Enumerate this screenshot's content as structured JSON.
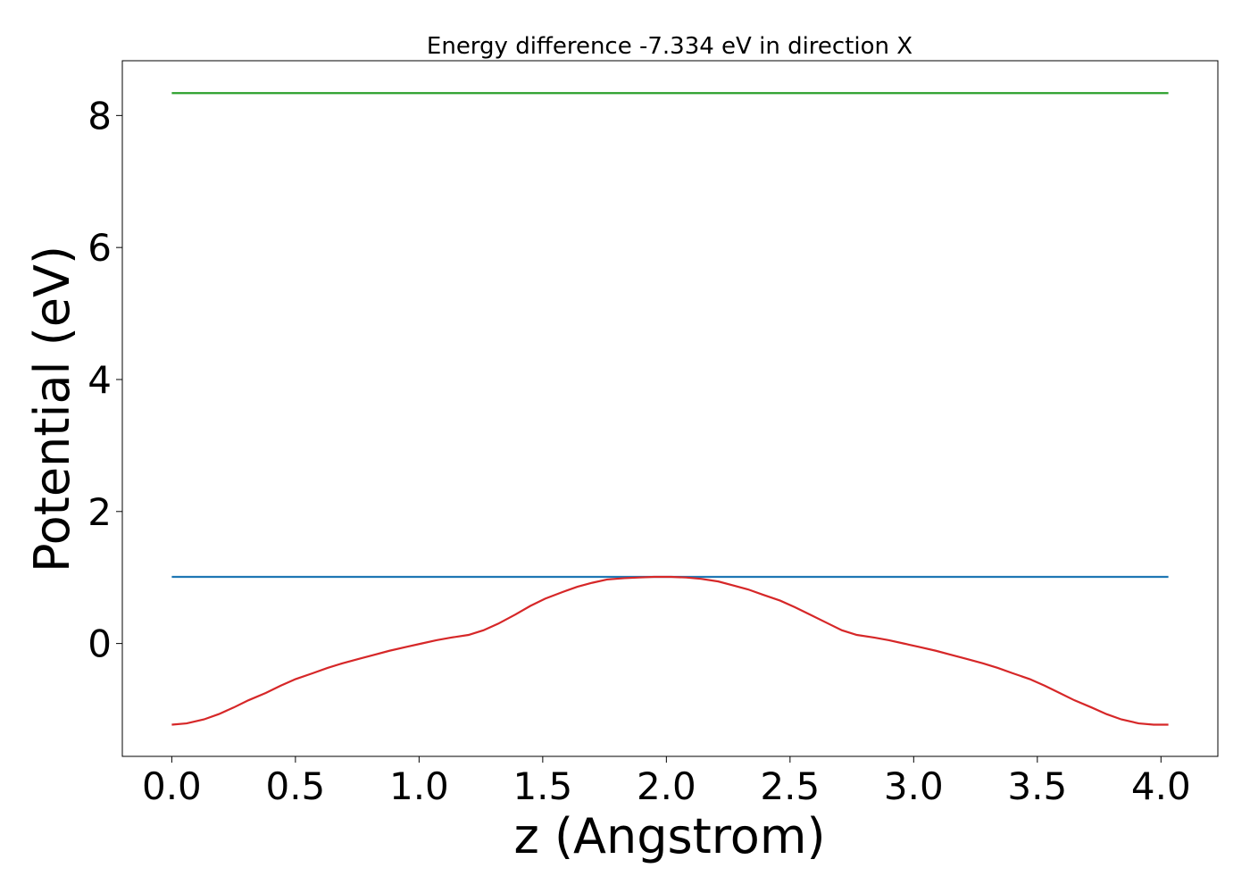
{
  "chart_data": {
    "type": "line",
    "title": "Energy difference -7.334 eV in direction X",
    "xlabel": "z (Angstrom)",
    "ylabel": "Potential (eV)",
    "xlim": [
      -0.2,
      4.23
    ],
    "ylim": [
      -1.71,
      8.83
    ],
    "x_ticks": [
      0.0,
      0.5,
      1.0,
      1.5,
      2.0,
      2.5,
      3.0,
      3.5,
      4.0
    ],
    "x_tick_labels": [
      "0.0",
      "0.5",
      "1.0",
      "1.5",
      "2.0",
      "2.5",
      "3.0",
      "3.5",
      "4.0"
    ],
    "y_ticks": [
      0,
      2,
      4,
      6,
      8
    ],
    "y_tick_labels": [
      "0",
      "2",
      "4",
      "6",
      "8"
    ],
    "grid": false,
    "legend": "none",
    "series": [
      {
        "color": "#2ca02c",
        "x": [
          0.0,
          4.03
        ],
        "y": [
          8.34,
          8.34
        ]
      },
      {
        "color": "#1f77b4",
        "x": [
          0.0,
          4.03
        ],
        "y": [
          1.01,
          1.01
        ]
      },
      {
        "color": "#d62728",
        "x": [
          0.0,
          0.06,
          0.13,
          0.19,
          0.25,
          0.31,
          0.38,
          0.44,
          0.5,
          0.57,
          0.63,
          0.69,
          0.76,
          0.82,
          0.88,
          0.95,
          1.01,
          1.07,
          1.13,
          1.2,
          1.26,
          1.32,
          1.39,
          1.45,
          1.51,
          1.58,
          1.64,
          1.7,
          1.76,
          1.83,
          1.89,
          1.95,
          2.02,
          2.08,
          2.14,
          2.21,
          2.27,
          2.33,
          2.39,
          2.46,
          2.52,
          2.58,
          2.65,
          2.71,
          2.77,
          2.84,
          2.9,
          2.96,
          3.02,
          3.09,
          3.15,
          3.21,
          3.28,
          3.34,
          3.4,
          3.47,
          3.53,
          3.59,
          3.65,
          3.72,
          3.78,
          3.84,
          3.91,
          3.97,
          4.03
        ],
        "y": [
          -1.23,
          -1.21,
          -1.15,
          -1.07,
          -0.97,
          -0.86,
          -0.75,
          -0.64,
          -0.54,
          -0.45,
          -0.37,
          -0.3,
          -0.23,
          -0.17,
          -0.11,
          -0.05,
          0.0,
          0.05,
          0.09,
          0.13,
          0.2,
          0.3,
          0.44,
          0.57,
          0.68,
          0.78,
          0.86,
          0.92,
          0.97,
          0.99,
          1.0,
          1.01,
          1.01,
          1.0,
          0.98,
          0.94,
          0.88,
          0.82,
          0.74,
          0.65,
          0.55,
          0.44,
          0.31,
          0.2,
          0.13,
          0.09,
          0.05,
          0.0,
          -0.05,
          -0.11,
          -0.17,
          -0.23,
          -0.3,
          -0.37,
          -0.45,
          -0.54,
          -0.64,
          -0.75,
          -0.86,
          -0.97,
          -1.07,
          -1.15,
          -1.21,
          -1.23,
          -1.23
        ]
      }
    ]
  }
}
